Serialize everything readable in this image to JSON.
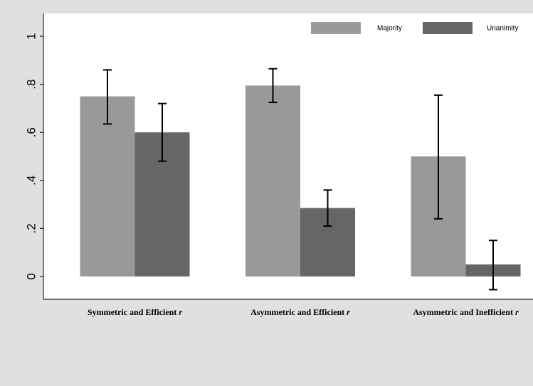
{
  "colors": {
    "background_outer": "#e0e0e0",
    "plot_background": "#ffffff",
    "majority": "#999999",
    "unanimity": "#666666",
    "error_bar": "#000000"
  },
  "chart_data": {
    "type": "bar",
    "categories": [
      {
        "main": "Symmetric and Efficient",
        "suffix": "r"
      },
      {
        "main": "Asymmetric and Efficient",
        "suffix": "r"
      },
      {
        "main": "Asymmetric and Inefficient",
        "suffix": "r"
      }
    ],
    "series": [
      {
        "name": "Majority",
        "color": "#999999",
        "values": [
          0.75,
          0.795,
          0.5
        ],
        "ci_low": [
          0.635,
          0.725,
          0.24
        ],
        "ci_high": [
          0.86,
          0.865,
          0.755
        ]
      },
      {
        "name": "Unanimity",
        "color": "#666666",
        "values": [
          0.6,
          0.285,
          0.05
        ],
        "ci_low": [
          0.48,
          0.21,
          -0.055
        ],
        "ci_high": [
          0.72,
          0.36,
          0.15
        ]
      }
    ],
    "yticks": [
      "0",
      ".2",
      ".4",
      ".6",
      ".8",
      "1"
    ],
    "ytick_values": [
      0,
      0.2,
      0.4,
      0.6,
      0.8,
      1.0
    ],
    "ylim": [
      -0.095,
      1.095
    ],
    "xlabel": "",
    "ylabel": "",
    "grid": false,
    "legend_position": "top-right"
  }
}
